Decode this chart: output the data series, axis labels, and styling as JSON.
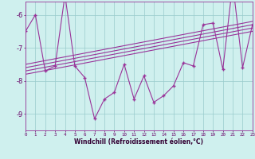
{
  "x": [
    0,
    1,
    2,
    3,
    4,
    5,
    6,
    7,
    8,
    9,
    10,
    11,
    12,
    13,
    14,
    15,
    16,
    17,
    18,
    19,
    20,
    21,
    22,
    23
  ],
  "y": [
    -6.5,
    -6.0,
    -7.7,
    -7.55,
    -5.4,
    -7.55,
    -7.9,
    -9.15,
    -8.55,
    -8.35,
    -7.5,
    -8.55,
    -7.85,
    -8.65,
    -8.45,
    -8.15,
    -7.45,
    -7.55,
    -6.3,
    -6.25,
    -7.65,
    -5.05,
    -7.6,
    -6.3
  ],
  "trend_lines": [
    {
      "x0": 0,
      "y0": -7.5,
      "x1": 23,
      "y1": -6.2
    },
    {
      "x0": 0,
      "y0": -7.6,
      "x1": 23,
      "y1": -6.3
    },
    {
      "x0": 0,
      "y0": -7.7,
      "x1": 23,
      "y1": -6.4
    },
    {
      "x0": 0,
      "y0": -7.8,
      "x1": 23,
      "y1": -6.5
    }
  ],
  "color": "#993399",
  "bg_color": "#cff0ee",
  "grid_color": "#99cccc",
  "yticks": [
    -9,
    -8,
    -7,
    -6
  ],
  "xlabel": "Windchill (Refroidissement éolien,°C)",
  "xlim": [
    0,
    23
  ],
  "ylim": [
    -9.5,
    -5.6
  ]
}
